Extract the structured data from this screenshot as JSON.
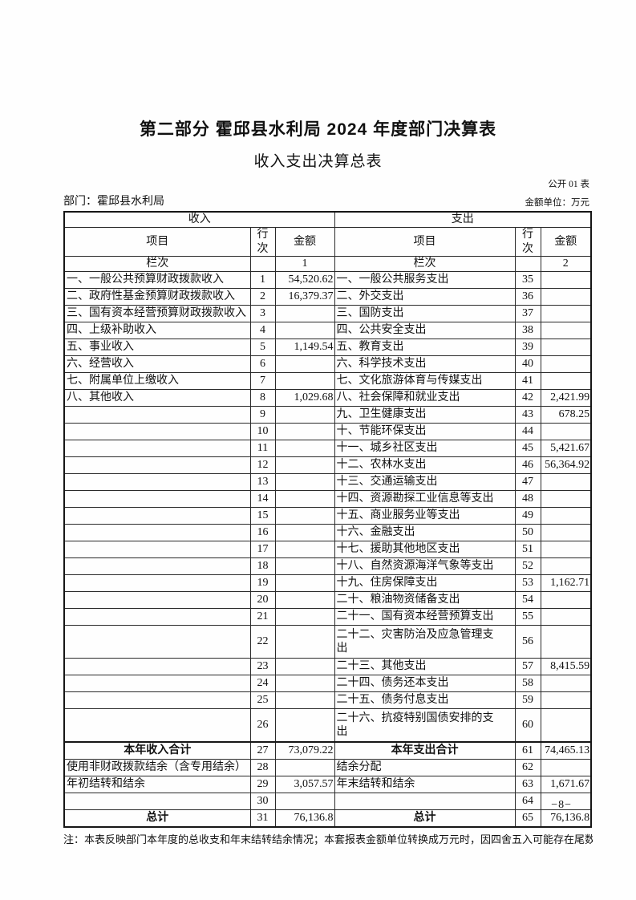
{
  "header": {
    "title": "第二部分 霍邱县水利局 2024 年度部门决算表",
    "subtitle": "收入支出决算总表",
    "table_code": "公开 01 表",
    "department": "部门：霍邱县水利局",
    "unit": "金额单位：万元"
  },
  "table": {
    "income_header": "收入",
    "expense_header": "支出",
    "col_item": "项目",
    "col_row_no": "行次",
    "col_amount": "金额",
    "lanci_label": "栏次",
    "income_col_index": "1",
    "expense_col_index": "2",
    "rows": [
      {
        "i_item": "一、一般公共预算财政拨款收入",
        "i_no": "1",
        "i_amt": "54,520.62",
        "e_item": "一、一般公共服务支出",
        "e_no": "35",
        "e_amt": ""
      },
      {
        "i_item": "二、政府性基金预算财政拨款收入",
        "i_no": "2",
        "i_amt": "16,379.37",
        "e_item": "二、外交支出",
        "e_no": "36",
        "e_amt": ""
      },
      {
        "i_item": "三、国有资本经营预算财政拨款收入",
        "i_no": "3",
        "i_amt": "",
        "e_item": "三、国防支出",
        "e_no": "37",
        "e_amt": ""
      },
      {
        "i_item": "四、上级补助收入",
        "i_no": "4",
        "i_amt": "",
        "e_item": "四、公共安全支出",
        "e_no": "38",
        "e_amt": ""
      },
      {
        "i_item": "五、事业收入",
        "i_no": "5",
        "i_amt": "1,149.54",
        "e_item": "五、教育支出",
        "e_no": "39",
        "e_amt": ""
      },
      {
        "i_item": "六、经营收入",
        "i_no": "6",
        "i_amt": "",
        "e_item": "六、科学技术支出",
        "e_no": "40",
        "e_amt": ""
      },
      {
        "i_item": "七、附属单位上缴收入",
        "i_no": "7",
        "i_amt": "",
        "e_item": "七、文化旅游体育与传媒支出",
        "e_no": "41",
        "e_amt": ""
      },
      {
        "i_item": "八、其他收入",
        "i_no": "8",
        "i_amt": "1,029.68",
        "e_item": "八、社会保障和就业支出",
        "e_no": "42",
        "e_amt": "2,421.99"
      },
      {
        "i_item": "",
        "i_no": "9",
        "i_amt": "",
        "e_item": "九、卫生健康支出",
        "e_no": "43",
        "e_amt": "678.25"
      },
      {
        "i_item": "",
        "i_no": "10",
        "i_amt": "",
        "e_item": "十、节能环保支出",
        "e_no": "44",
        "e_amt": ""
      },
      {
        "i_item": "",
        "i_no": "11",
        "i_amt": "",
        "e_item": "十一、城乡社区支出",
        "e_no": "45",
        "e_amt": "5,421.67"
      },
      {
        "i_item": "",
        "i_no": "12",
        "i_amt": "",
        "e_item": "十二、农林水支出",
        "e_no": "46",
        "e_amt": "56,364.92"
      },
      {
        "i_item": "",
        "i_no": "13",
        "i_amt": "",
        "e_item": "十三、交通运输支出",
        "e_no": "47",
        "e_amt": ""
      },
      {
        "i_item": "",
        "i_no": "14",
        "i_amt": "",
        "e_item": "十四、资源勘探工业信息等支出",
        "e_no": "48",
        "e_amt": ""
      },
      {
        "i_item": "",
        "i_no": "15",
        "i_amt": "",
        "e_item": "十五、商业服务业等支出",
        "e_no": "49",
        "e_amt": ""
      },
      {
        "i_item": "",
        "i_no": "16",
        "i_amt": "",
        "e_item": "十六、金融支出",
        "e_no": "50",
        "e_amt": ""
      },
      {
        "i_item": "",
        "i_no": "17",
        "i_amt": "",
        "e_item": "十七、援助其他地区支出",
        "e_no": "51",
        "e_amt": ""
      },
      {
        "i_item": "",
        "i_no": "18",
        "i_amt": "",
        "e_item": "十八、自然资源海洋气象等支出",
        "e_no": "52",
        "e_amt": ""
      },
      {
        "i_item": "",
        "i_no": "19",
        "i_amt": "",
        "e_item": "十九、住房保障支出",
        "e_no": "53",
        "e_amt": "1,162.71"
      },
      {
        "i_item": "",
        "i_no": "20",
        "i_amt": "",
        "e_item": "二十、粮油物资储备支出",
        "e_no": "54",
        "e_amt": ""
      },
      {
        "i_item": "",
        "i_no": "21",
        "i_amt": "",
        "e_item": "二十一、国有资本经营预算支出",
        "e_no": "55",
        "e_amt": ""
      },
      {
        "i_item": "",
        "i_no": "22",
        "i_amt": "",
        "e_item": "二十二、灾害防治及应急管理支出",
        "e_no": "56",
        "e_amt": "",
        "tall": true
      },
      {
        "i_item": "",
        "i_no": "23",
        "i_amt": "",
        "e_item": "二十三、其他支出",
        "e_no": "57",
        "e_amt": "8,415.59"
      },
      {
        "i_item": "",
        "i_no": "24",
        "i_amt": "",
        "e_item": "二十四、债务还本支出",
        "e_no": "58",
        "e_amt": ""
      },
      {
        "i_item": "",
        "i_no": "25",
        "i_amt": "",
        "e_item": "二十五、债务付息支出",
        "e_no": "59",
        "e_amt": ""
      },
      {
        "i_item": "",
        "i_no": "26",
        "i_amt": "",
        "e_item": "二十六、抗疫特别国债安排的支出",
        "e_no": "60",
        "e_amt": "",
        "tall": true
      },
      {
        "i_item": "本年收入合计",
        "i_no": "27",
        "i_amt": "73,079.22",
        "e_item": "本年支出合计",
        "e_no": "61",
        "e_amt": "74,465.13",
        "emph": true,
        "thick_top": true
      },
      {
        "i_item": "使用非财政拨款结余（含专用结余）",
        "i_no": "28",
        "i_amt": "",
        "e_item": "结余分配",
        "e_no": "62",
        "e_amt": ""
      },
      {
        "i_item": "年初结转和结余",
        "i_no": "29",
        "i_amt": "3,057.57",
        "e_item": "年末结转和结余",
        "e_no": "63",
        "e_amt": "1,671.67"
      },
      {
        "i_item": "",
        "i_no": "30",
        "i_amt": "",
        "e_item": "",
        "e_no": "64",
        "e_amt": ""
      },
      {
        "i_item": "总计",
        "i_no": "31",
        "i_amt": "76,136.8",
        "e_item": "总计",
        "e_no": "65",
        "e_amt": "76,136.8",
        "emph": true
      }
    ]
  },
  "footer": {
    "note": "注：本表反映部门本年度的总收支和年末结转结余情况；本套报表金额单位转换成万元时，因四舍五入可能存在尾数",
    "page_number": "−8−"
  }
}
